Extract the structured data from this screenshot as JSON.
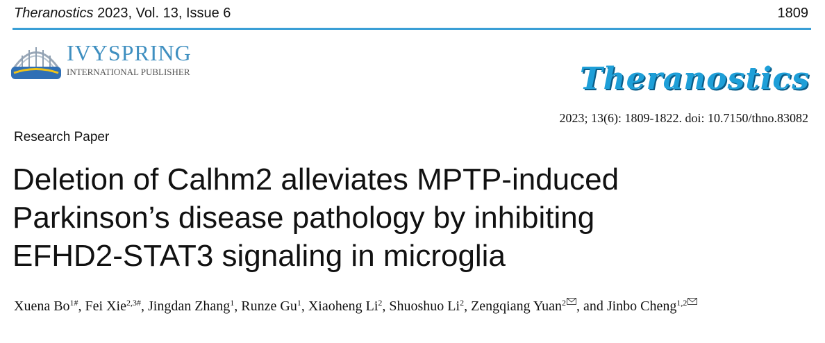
{
  "header": {
    "journal": "Theranostics",
    "issue": "2023, Vol. 13, Issue 6",
    "page": "1809"
  },
  "publisher": {
    "name": "IVYSPRING",
    "subtitle": "INTERNATIONAL PUBLISHER"
  },
  "journal_logo": "Theranostics",
  "citation": "2023; 13(6): 1809-1822. doi: 10.7150/thno.83082",
  "article_type": "Research Paper",
  "title_lines": [
    "Deletion of Calhm2 alleviates MPTP-induced",
    "Parkinson’s disease pathology by inhibiting",
    "EFHD2-STAT3 signaling in microglia"
  ],
  "authors": [
    {
      "name": "Xuena Bo",
      "sup": "1#",
      "sep": ","
    },
    {
      "name": "Fei Xie",
      "sup": "2,3#",
      "sep": ","
    },
    {
      "name": "Jingdan Zhang",
      "sup": "1",
      "sep": ","
    },
    {
      "name": "Runze Gu",
      "sup": "1",
      "sep": ","
    },
    {
      "name": "Xiaoheng Li",
      "sup": "2",
      "sep": ","
    },
    {
      "name": "Shuoshuo Li",
      "sup": "2",
      "sep": ","
    },
    {
      "name": "Zengqiang Yuan",
      "sup": "2",
      "corresponding": true,
      "sep": ", and"
    },
    {
      "name": "Jinbo Cheng",
      "sup": "1,2",
      "corresponding": true
    }
  ]
}
